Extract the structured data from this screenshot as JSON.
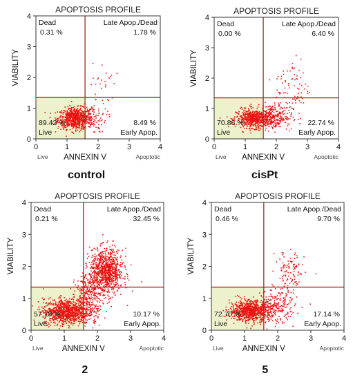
{
  "chart_data": [
    {
      "type": "scatter",
      "title": "APOPTOSIS PROFILE",
      "caption": "control",
      "xlabel": "ANNEXIN V",
      "ylabel": "VIABILITY",
      "xlim": [
        0,
        4
      ],
      "ylim": [
        0,
        4
      ],
      "xticks": [
        "0",
        "1",
        "2",
        "3",
        "4"
      ],
      "yticks": [
        "0",
        "1",
        "2",
        "3",
        "4"
      ],
      "gate": {
        "x": 1.58,
        "y": 1.35
      },
      "quadrants": {
        "dead_label": "Dead",
        "dead_pct": "0.31 %",
        "late_label": "Late Apop./Dead",
        "late_pct": "1.78 %",
        "live_label": "Live",
        "live_pct": "89.42 %",
        "early_label": "Early Apop.",
        "early_pct": "8.49 %"
      },
      "under_axis_left": "Live",
      "under_axis_right": "Apoptotic",
      "clusters": [
        {
          "cx": 1.25,
          "cy": 0.68,
          "sx": 0.28,
          "sy": 0.17,
          "n": 700
        },
        {
          "cx": 1.75,
          "cy": 0.72,
          "sx": 0.25,
          "sy": 0.25,
          "n": 90
        },
        {
          "cx": 2.15,
          "cy": 1.8,
          "sx": 0.2,
          "sy": 0.35,
          "n": 25
        }
      ]
    },
    {
      "type": "scatter",
      "title": "APOPTOSIS PROFILE",
      "caption": "cisPt",
      "xlabel": "ANNEXIN V",
      "ylabel": "VIABILITY",
      "xlim": [
        0,
        4
      ],
      "ylim": [
        0,
        4
      ],
      "xticks": [
        "0",
        "1",
        "2",
        "3",
        "4"
      ],
      "yticks": [
        "0",
        "1",
        "2",
        "3",
        "4"
      ],
      "gate": {
        "x": 1.58,
        "y": 1.35
      },
      "quadrants": {
        "dead_label": "Dead",
        "dead_pct": "0.00 %",
        "late_label": "Late Apop./Dead",
        "late_pct": "6.40 %",
        "live_label": "Live",
        "live_pct": "70.86 %",
        "early_label": "Early Apop.",
        "early_pct": "22.74 %"
      },
      "under_axis_left": "Live",
      "under_axis_right": "Apoptotic",
      "clusters": [
        {
          "cx": 1.3,
          "cy": 0.68,
          "sx": 0.3,
          "sy": 0.15,
          "n": 600
        },
        {
          "cx": 1.9,
          "cy": 0.75,
          "sx": 0.3,
          "sy": 0.22,
          "n": 220
        },
        {
          "cx": 2.5,
          "cy": 1.7,
          "sx": 0.28,
          "sy": 0.5,
          "n": 80
        }
      ]
    },
    {
      "type": "scatter",
      "title": "APOPTOSIS PROFILE",
      "caption": "2",
      "xlabel": "ANNEXIN V",
      "ylabel": "VIABILITY",
      "xlim": [
        0,
        4
      ],
      "ylim": [
        0,
        4
      ],
      "xticks": [
        "0",
        "1",
        "2",
        "3",
        "4"
      ],
      "yticks": [
        "0",
        "1",
        "2",
        "3",
        "4"
      ],
      "gate": {
        "x": 1.58,
        "y": 1.35
      },
      "quadrants": {
        "dead_label": "Dead",
        "dead_pct": "0.21 %",
        "late_label": "Late Apop./Dead",
        "late_pct": "32.45 %",
        "live_label": "Live",
        "live_pct": "57.18 %",
        "early_label": "Early Apop.",
        "early_pct": "10.17 %"
      },
      "under_axis_left": "Live",
      "under_axis_right": "Apoptotic",
      "clusters": [
        {
          "cx": 1.05,
          "cy": 0.6,
          "sx": 0.35,
          "sy": 0.2,
          "n": 900
        },
        {
          "cx": 2.25,
          "cy": 1.85,
          "sx": 0.25,
          "sy": 0.35,
          "n": 900
        },
        {
          "cx": 1.75,
          "cy": 1.1,
          "sx": 0.22,
          "sy": 0.35,
          "n": 300
        }
      ]
    },
    {
      "type": "scatter",
      "title": "APOPTOSIS PROFILE",
      "caption": "5",
      "xlabel": "ANNEXIN V",
      "ylabel": "VIABILITY",
      "xlim": [
        0,
        4
      ],
      "ylim": [
        0,
        4
      ],
      "xticks": [
        "0",
        "1",
        "2",
        "3",
        "4"
      ],
      "yticks": [
        "0",
        "1",
        "2",
        "3",
        "4"
      ],
      "gate": {
        "x": 1.58,
        "y": 1.35
      },
      "quadrants": {
        "dead_label": "Dead",
        "dead_pct": "0.46 %",
        "late_label": "Late Apop./Dead",
        "late_pct": "9.70 %",
        "live_label": "Live",
        "live_pct": "72.70 %",
        "early_label": "Early Apop.",
        "early_pct": "17.14 %"
      },
      "under_axis_left": "Live",
      "under_axis_right": "Apoptotic",
      "clusters": [
        {
          "cx": 1.15,
          "cy": 0.62,
          "sx": 0.3,
          "sy": 0.16,
          "n": 750
        },
        {
          "cx": 1.9,
          "cy": 0.75,
          "sx": 0.3,
          "sy": 0.25,
          "n": 250
        },
        {
          "cx": 2.35,
          "cy": 1.75,
          "sx": 0.22,
          "sy": 0.4,
          "n": 110
        }
      ]
    }
  ],
  "colors": {
    "dots": "#ee1111",
    "live_fill": "#eef2cc",
    "gate_line": "#9b2a1e",
    "axis": "#333333"
  }
}
